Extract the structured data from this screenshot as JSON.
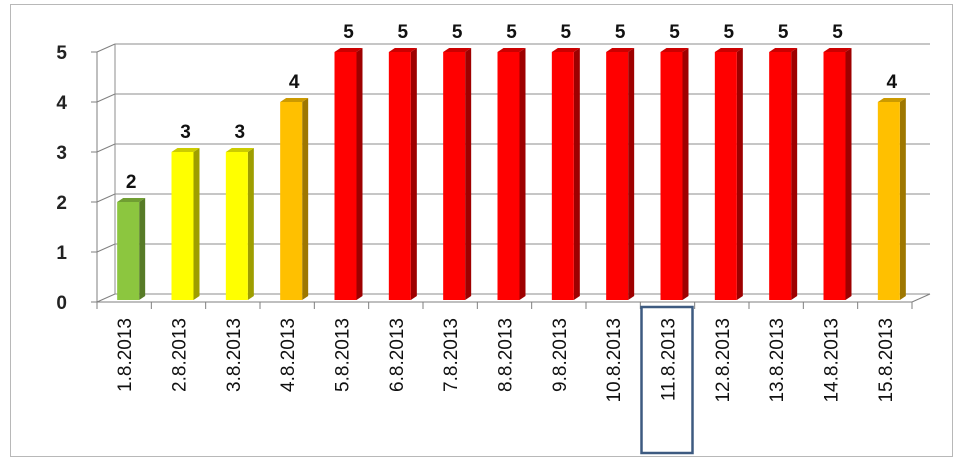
{
  "chart_data": {
    "type": "bar",
    "categories": [
      "1.8.2013",
      "2.8.2013",
      "3.8.2013",
      "4.8.2013",
      "5.8.2013",
      "6.8.2013",
      "7.8.2013",
      "8.8.2013",
      "9.8.2013",
      "10.8.2013",
      "11.8.2013",
      "12.8.2013",
      "13.8.2013",
      "14.8.2013",
      "15.8.2013"
    ],
    "values": [
      2,
      3,
      3,
      4,
      5,
      5,
      5,
      5,
      5,
      5,
      5,
      5,
      5,
      5,
      4
    ],
    "title": "",
    "xlabel": "",
    "ylabel": "",
    "ylim": [
      0,
      5
    ],
    "yticks": [
      0,
      1,
      2,
      3,
      4,
      5
    ],
    "grid": true,
    "legend": "none",
    "highlighted_category": "11.8.2013",
    "highlight_color": "#3d5a80",
    "value_colors": {
      "2": "#8cc63f",
      "3": "#ffff00",
      "4": "#ffc000",
      "5": "#ff0000"
    }
  }
}
